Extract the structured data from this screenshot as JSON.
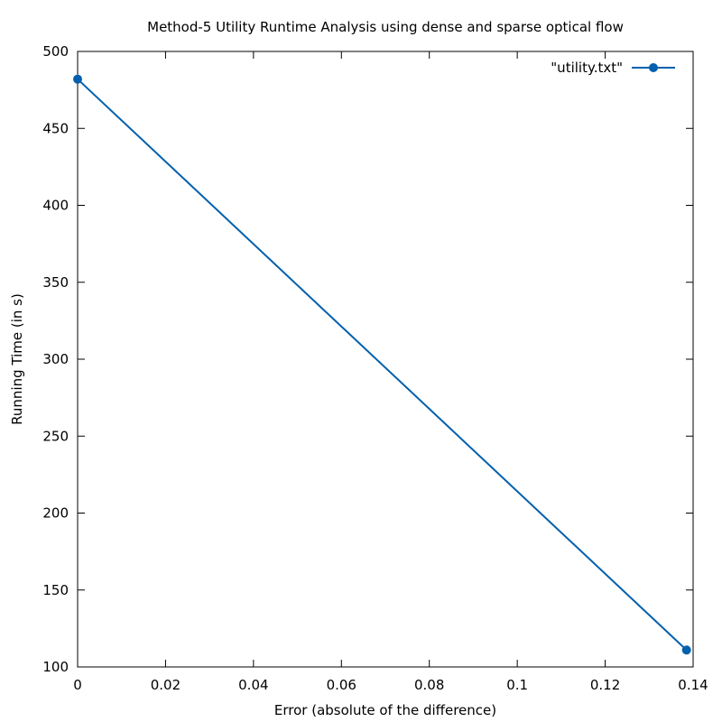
{
  "chart_data": {
    "type": "line",
    "title": "Method-5 Utility Runtime Analysis using dense and sparse optical flow",
    "xlabel": "Error (absolute of the difference)",
    "ylabel": "Running Time (in s)",
    "xlim": [
      0,
      0.14
    ],
    "ylim": [
      100,
      500
    ],
    "xticks": [
      0,
      0.02,
      0.04,
      0.06,
      0.08,
      0.1,
      0.12,
      0.14
    ],
    "xtick_labels": [
      "0",
      "0.02",
      "0.04",
      "0.06",
      "0.08",
      "0.1",
      "0.12",
      "0.14"
    ],
    "yticks": [
      100,
      150,
      200,
      250,
      300,
      350,
      400,
      450,
      500
    ],
    "ytick_labels": [
      "100",
      "150",
      "200",
      "250",
      "300",
      "350",
      "400",
      "450",
      "500"
    ],
    "grid": false,
    "legend_position": "top-right",
    "series": [
      {
        "name": "\"utility.txt\"",
        "color": "#0060ad",
        "marker": "circle",
        "x": [
          0,
          0.1385
        ],
        "y": [
          482,
          111
        ]
      }
    ]
  }
}
